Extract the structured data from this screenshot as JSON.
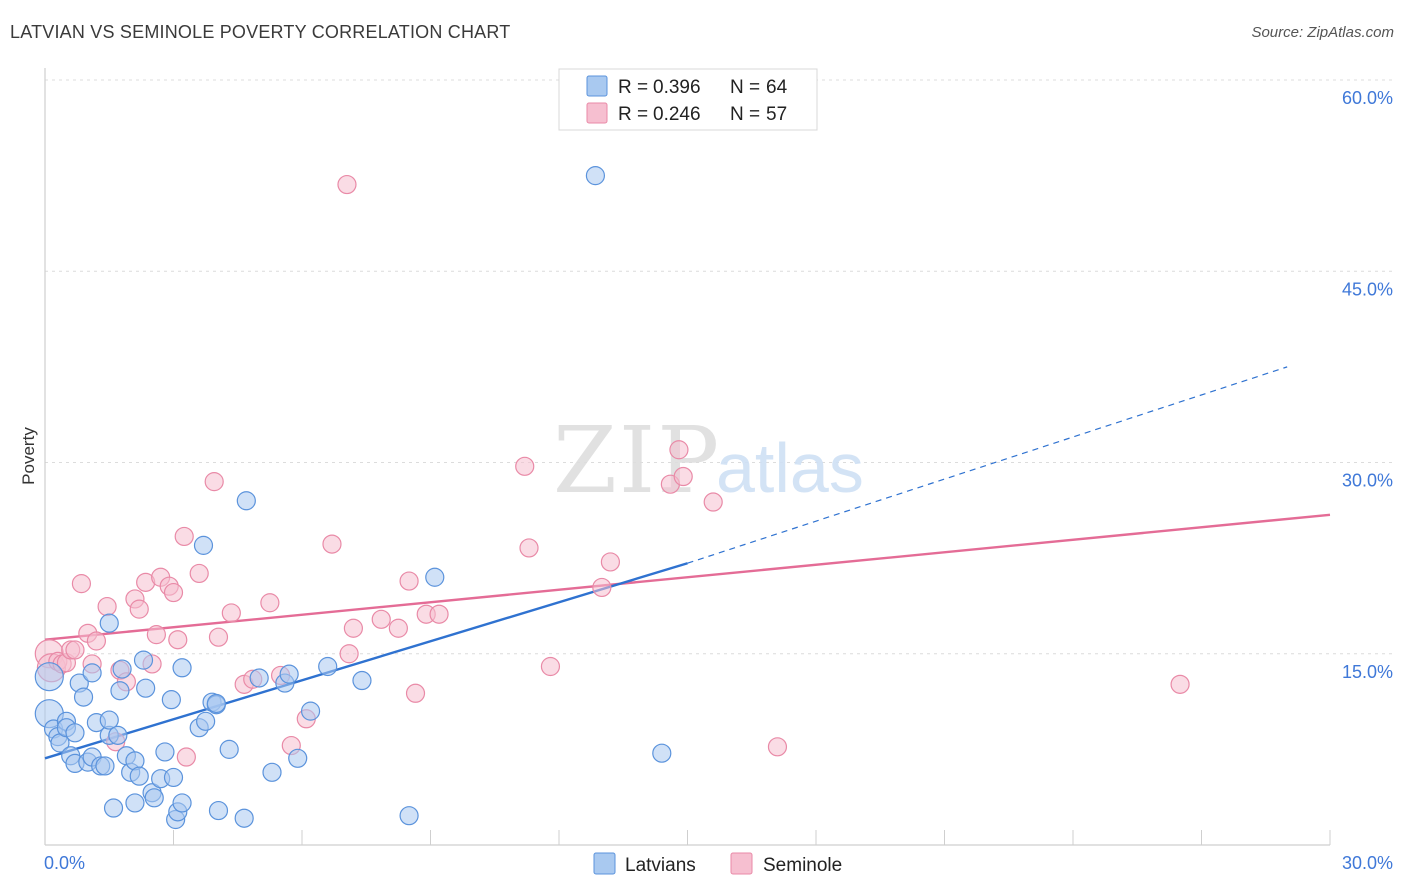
{
  "header": {
    "title": "LATVIAN VS SEMINOLE POVERTY CORRELATION CHART",
    "source": "Source: ZipAtlas.com"
  },
  "watermark": {
    "zip": "ZIP",
    "atlas": "atlas"
  },
  "colors": {
    "latvians_fill": "#a9c9f0",
    "latvians_stroke": "#5b93dc",
    "latvians_line": "#2f72d0",
    "seminole_fill": "#f6bfd0",
    "seminole_stroke": "#e98aa7",
    "seminole_line": "#e46c96",
    "tick_label": "#3f78d8"
  },
  "stats_legend": {
    "rows": [
      {
        "series": "Latvians",
        "r_label": "R =",
        "r_value": "0.396",
        "n_label": "N =",
        "n_value": "64"
      },
      {
        "series": "Seminole",
        "r_label": "R =",
        "r_value": "0.246",
        "n_label": "N =",
        "n_value": "57"
      }
    ]
  },
  "bottom_legend": {
    "items": [
      "Latvians",
      "Seminole"
    ]
  },
  "chart_data": {
    "type": "scatter",
    "title": "LATVIAN VS SEMINOLE POVERTY CORRELATION CHART",
    "xlabel": "",
    "ylabel": "Poverty",
    "xlim": [
      0,
      30
    ],
    "ylim": [
      0,
      60
    ],
    "x_tick_labels": [
      "0.0%",
      "30.0%"
    ],
    "y_ticks": [
      15,
      30,
      45,
      60
    ],
    "y_tick_labels": [
      "15.0%",
      "30.0%",
      "45.0%",
      "60.0%"
    ],
    "grid": true,
    "legend_position": "top-center",
    "series": [
      {
        "name": "Latvians",
        "r": 0.396,
        "n": 64,
        "trend": {
          "x_solid": [
            0,
            15
          ],
          "y_solid": [
            6.8,
            22.1
          ],
          "x_dashed": [
            15,
            29
          ],
          "y_dashed": [
            22.1,
            37.5
          ]
        },
        "points": [
          [
            0.1,
            13.2
          ],
          [
            0.1,
            10.3
          ],
          [
            0.2,
            9.1
          ],
          [
            0.3,
            8.5
          ],
          [
            0.35,
            8.0
          ],
          [
            0.5,
            9.7
          ],
          [
            0.5,
            9.2
          ],
          [
            0.6,
            7.0
          ],
          [
            0.7,
            6.4
          ],
          [
            0.7,
            8.8
          ],
          [
            0.8,
            12.7
          ],
          [
            0.9,
            11.6
          ],
          [
            1.0,
            6.5
          ],
          [
            1.1,
            6.9
          ],
          [
            1.1,
            13.5
          ],
          [
            1.2,
            9.6
          ],
          [
            1.3,
            6.2
          ],
          [
            1.4,
            6.2
          ],
          [
            1.5,
            8.6
          ],
          [
            1.5,
            9.8
          ],
          [
            1.5,
            17.4
          ],
          [
            1.6,
            2.9
          ],
          [
            1.7,
            8.6
          ],
          [
            1.75,
            12.1
          ],
          [
            1.8,
            13.8
          ],
          [
            1.9,
            7.0
          ],
          [
            2.0,
            5.7
          ],
          [
            2.1,
            3.3
          ],
          [
            2.1,
            6.6
          ],
          [
            2.2,
            5.4
          ],
          [
            2.3,
            14.5
          ],
          [
            2.35,
            12.3
          ],
          [
            2.5,
            4.1
          ],
          [
            2.55,
            3.7
          ],
          [
            2.7,
            5.2
          ],
          [
            2.8,
            7.3
          ],
          [
            2.95,
            11.4
          ],
          [
            3.0,
            5.3
          ],
          [
            3.05,
            2.0
          ],
          [
            3.1,
            2.6
          ],
          [
            3.2,
            3.3
          ],
          [
            3.2,
            13.9
          ],
          [
            3.6,
            9.2
          ],
          [
            3.7,
            23.5
          ],
          [
            3.75,
            9.7
          ],
          [
            3.9,
            11.2
          ],
          [
            4.0,
            11.0
          ],
          [
            4.0,
            11.1
          ],
          [
            4.05,
            2.7
          ],
          [
            4.3,
            7.5
          ],
          [
            4.65,
            2.1
          ],
          [
            4.7,
            27.0
          ],
          [
            5.0,
            13.1
          ],
          [
            5.3,
            5.7
          ],
          [
            5.6,
            12.7
          ],
          [
            5.7,
            13.4
          ],
          [
            5.9,
            6.8
          ],
          [
            6.2,
            10.5
          ],
          [
            6.6,
            14.0
          ],
          [
            7.4,
            12.9
          ],
          [
            8.5,
            2.3
          ],
          [
            9.1,
            21.0
          ],
          [
            12.85,
            52.5
          ],
          [
            14.4,
            7.2
          ]
        ]
      },
      {
        "name": "Seminole",
        "r": 0.246,
        "n": 57,
        "trend": {
          "x": [
            0,
            30
          ],
          "y": [
            16.1,
            25.9
          ]
        },
        "points": [
          [
            0.1,
            15.0
          ],
          [
            0.15,
            13.9
          ],
          [
            0.3,
            14.4
          ],
          [
            0.4,
            14.2
          ],
          [
            0.5,
            14.3
          ],
          [
            0.6,
            15.3
          ],
          [
            0.7,
            15.3
          ],
          [
            0.85,
            20.5
          ],
          [
            1.0,
            16.6
          ],
          [
            1.1,
            14.2
          ],
          [
            1.2,
            16.0
          ],
          [
            1.45,
            18.7
          ],
          [
            1.65,
            8.1
          ],
          [
            1.75,
            13.7
          ],
          [
            1.9,
            12.8
          ],
          [
            2.1,
            19.3
          ],
          [
            2.2,
            18.5
          ],
          [
            2.35,
            20.6
          ],
          [
            2.5,
            14.2
          ],
          [
            2.6,
            16.5
          ],
          [
            2.7,
            21.0
          ],
          [
            2.9,
            20.3
          ],
          [
            3.0,
            19.8
          ],
          [
            3.1,
            16.1
          ],
          [
            3.25,
            24.2
          ],
          [
            3.3,
            6.9
          ],
          [
            3.6,
            21.3
          ],
          [
            3.95,
            28.5
          ],
          [
            4.05,
            16.3
          ],
          [
            4.35,
            18.2
          ],
          [
            4.65,
            12.6
          ],
          [
            4.85,
            13.0
          ],
          [
            5.25,
            19.0
          ],
          [
            5.5,
            13.3
          ],
          [
            5.75,
            7.8
          ],
          [
            6.1,
            9.9
          ],
          [
            6.7,
            23.6
          ],
          [
            7.05,
            51.8
          ],
          [
            7.1,
            15.0
          ],
          [
            7.2,
            17.0
          ],
          [
            7.85,
            17.7
          ],
          [
            8.25,
            17.0
          ],
          [
            8.5,
            20.7
          ],
          [
            8.65,
            11.9
          ],
          [
            8.9,
            18.1
          ],
          [
            9.2,
            18.1
          ],
          [
            11.2,
            29.7
          ],
          [
            11.3,
            23.3
          ],
          [
            11.8,
            14.0
          ],
          [
            13.0,
            20.2
          ],
          [
            13.2,
            22.2
          ],
          [
            14.6,
            28.3
          ],
          [
            14.8,
            31.0
          ],
          [
            14.9,
            28.9
          ],
          [
            15.6,
            26.9
          ],
          [
            17.1,
            7.7
          ],
          [
            26.5,
            12.6
          ]
        ]
      }
    ]
  }
}
